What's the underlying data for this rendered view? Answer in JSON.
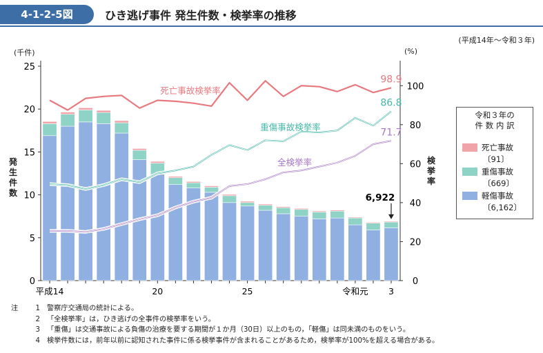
{
  "figure": {
    "number": "4-1-2-5図",
    "title": "ひき逃げ事件 発生件数・検挙率の推移",
    "period": "(平成14年～令和３年)",
    "left_unit": "(千件)",
    "right_unit": "(%)",
    "left_axis_label": "発生件数",
    "right_axis_label": "検挙率"
  },
  "legend": {
    "heading_line1": "令和３年の",
    "heading_line2": "件 数 内 訳",
    "items": [
      {
        "name": "死亡事故",
        "count": "〔91〕",
        "color": "#f0a3a8"
      },
      {
        "name": "重傷事故",
        "count": "〔669〕",
        "color": "#8fd3c7"
      },
      {
        "name": "軽傷事故",
        "count": "〔6,162〕",
        "color": "#8fb0e0"
      }
    ]
  },
  "chart_data": {
    "type": "bar",
    "stacked": true,
    "categories": [
      "平成14",
      "15",
      "16",
      "17",
      "18",
      "19",
      "20",
      "21",
      "22",
      "23",
      "24",
      "25",
      "26",
      "27",
      "28",
      "29",
      "30",
      "令和元",
      "2",
      "3"
    ],
    "x_tick_labels": [
      "平成14",
      "",
      "",
      "",
      "",
      "",
      "20",
      "",
      "",
      "",
      "",
      "25",
      "",
      "",
      "",
      "",
      "",
      "令和元",
      "",
      "3"
    ],
    "ylim": [
      0,
      25
    ],
    "yticks": [
      0,
      5,
      10,
      15,
      20,
      25
    ],
    "y2lim": [
      0,
      110
    ],
    "y2ticks": [
      0,
      20,
      40,
      60,
      80,
      100
    ],
    "series": [
      {
        "name": "軽傷事故",
        "color": "#8fb0e0",
        "values": [
          16.9,
          18.0,
          18.5,
          18.3,
          17.2,
          14.1,
          12.4,
          11.2,
          10.8,
          10.3,
          9.1,
          8.7,
          8.2,
          7.8,
          7.5,
          7.2,
          7.3,
          6.5,
          5.9,
          6.162
        ]
      },
      {
        "name": "重傷事故",
        "color": "#8fd3c7",
        "values": [
          1.4,
          1.4,
          1.4,
          1.3,
          1.2,
          1.1,
          1.3,
          0.8,
          0.6,
          0.6,
          0.8,
          0.4,
          0.6,
          0.7,
          0.8,
          0.8,
          0.8,
          0.8,
          0.8,
          0.669
        ]
      },
      {
        "name": "死亡事故",
        "color": "#f0a3a8",
        "values": [
          0.25,
          0.25,
          0.25,
          0.25,
          0.25,
          0.2,
          0.2,
          0.15,
          0.15,
          0.15,
          0.15,
          0.15,
          0.13,
          0.12,
          0.12,
          0.12,
          0.12,
          0.1,
          0.1,
          0.091
        ]
      }
    ],
    "lines": [
      {
        "name": "死亡事故検挙率",
        "color": "#e8797f",
        "end_label": "98.9",
        "values": [
          92.5,
          87.5,
          93.5,
          94.5,
          95.0,
          88.5,
          92.5,
          92.0,
          91.0,
          89.5,
          101.5,
          92.5,
          102.5,
          94.5,
          100.0,
          99.5,
          97.0,
          100.5,
          96.5,
          98.9
        ]
      },
      {
        "name": "重傷事故検挙率",
        "color": "#45b7a8",
        "end_label": "86.8",
        "values": [
          49.5,
          49.0,
          47.0,
          49.0,
          52.0,
          50.5,
          55.0,
          56.5,
          58.5,
          64.5,
          69.5,
          67.0,
          72.0,
          71.5,
          76.5,
          76.0,
          77.0,
          83.5,
          79.5,
          86.8
        ]
      },
      {
        "name": "全検挙率",
        "color": "#a777c4",
        "end_label": "71.7",
        "values": [
          25.5,
          25.5,
          25.0,
          26.5,
          29.0,
          31.5,
          33.5,
          37.5,
          40.5,
          42.5,
          48.5,
          49.5,
          52.0,
          55.5,
          56.5,
          58.5,
          60.5,
          64.0,
          70.0,
          71.7
        ]
      }
    ],
    "annotation": "6,922"
  },
  "notes": {
    "lead": "注",
    "items": [
      {
        "num": "1",
        "text": "警察庁交通局の統計による。"
      },
      {
        "num": "2",
        "text": "「全検挙率」は，ひき逃げの全事件の検挙率をいう。"
      },
      {
        "num": "3",
        "text": "「重傷」は交通事故による負傷の治療を要する期間が１か月（30日）以上のもの，「軽傷」は同未満のものをいう。"
      },
      {
        "num": "4",
        "text": "検挙件数には，前年以前に認知された事件に係る検挙事件が含まれることがあるため，検挙率が100%を超える場合がある。"
      }
    ]
  }
}
